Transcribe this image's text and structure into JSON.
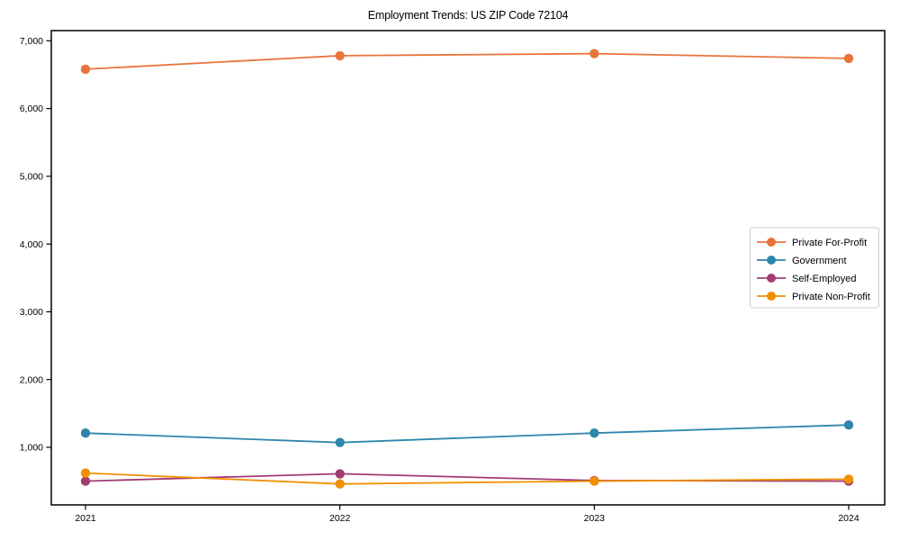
{
  "window": {
    "background_color": "#ffffff"
  },
  "chart_data": {
    "type": "line",
    "title": "Employment Trends: US ZIP Code 72104",
    "xlabel": "",
    "ylabel": "",
    "categories": [
      "2021",
      "2022",
      "2023",
      "2024"
    ],
    "series": [
      {
        "name": "Private For-Profit",
        "color": "#E8743C",
        "values": [
          6580,
          6780,
          6810,
          6740
        ]
      },
      {
        "name": "Government",
        "color": "#2E86AB",
        "values": [
          1210,
          1070,
          1210,
          1330
        ]
      },
      {
        "name": "Self-Employed",
        "color": "#A23B72",
        "values": [
          500,
          610,
          510,
          500
        ]
      },
      {
        "name": "Private Non-Profit",
        "color": "#F18F01",
        "values": [
          620,
          460,
          500,
          530
        ]
      }
    ],
    "y_ticks": [
      {
        "value": 1000,
        "label": "1,000"
      },
      {
        "value": 2000,
        "label": "2,000"
      },
      {
        "value": 3000,
        "label": "3,000"
      },
      {
        "value": 4000,
        "label": "4,000"
      },
      {
        "value": 5000,
        "label": "5,000"
      },
      {
        "value": 6000,
        "label": "6,000"
      },
      {
        "value": 7000,
        "label": "7,000"
      }
    ],
    "ylim": [
      150,
      7150
    ],
    "grid": false,
    "legend_position": "center-right",
    "marker": "circle",
    "axis_color": "#000000",
    "legend_border_color": "#cccccc",
    "legend_background": "#ffffff"
  }
}
